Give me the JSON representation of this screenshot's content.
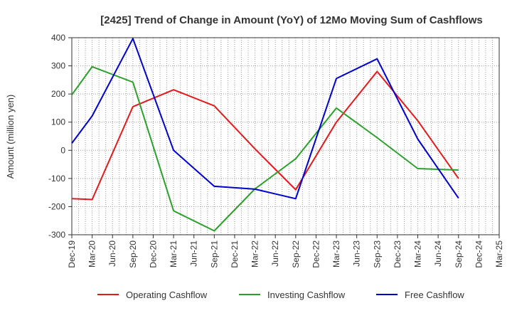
{
  "chart_data": {
    "type": "line",
    "title": "[2425]  Trend of Change in Amount (YoY) of 12Mo Moving Sum of Cashflows",
    "xlabel": "",
    "ylabel": "Amount (million yen)",
    "ylim": [
      -300,
      400
    ],
    "yticks": [
      400,
      300,
      200,
      100,
      0,
      -100,
      -200,
      -300
    ],
    "ytick_labels": [
      "400",
      "300",
      "200",
      "100",
      "0",
      "-100",
      "-200",
      "-300"
    ],
    "categories": [
      "Dec-19",
      "Mar-20",
      "Jun-20",
      "Sep-20",
      "Dec-20",
      "Mar-21",
      "Jun-21",
      "Sep-21",
      "Dec-21",
      "Mar-22",
      "Jun-22",
      "Sep-22",
      "Dec-22",
      "Mar-23",
      "Jun-23",
      "Sep-23",
      "Dec-23",
      "Mar-24",
      "Jun-24",
      "Sep-24",
      "Dec-24",
      "Mar-25"
    ],
    "grid": true,
    "legend_position": "bottom",
    "series": [
      {
        "name": "Operating Cashflow",
        "color": "#e31a1c",
        "points": [
          [
            0,
            -172
          ],
          [
            1,
            -175
          ],
          [
            3,
            155
          ],
          [
            5,
            215
          ],
          [
            7,
            158
          ],
          [
            9,
            5
          ],
          [
            11,
            -140
          ],
          [
            13,
            100
          ],
          [
            15,
            280
          ],
          [
            17,
            105
          ],
          [
            19,
            -100
          ]
        ]
      },
      {
        "name": "Investing Cashflow",
        "color": "#2ca02c",
        "points": [
          [
            0,
            197
          ],
          [
            1,
            297
          ],
          [
            3,
            242
          ],
          [
            5,
            -215
          ],
          [
            7,
            -286
          ],
          [
            9,
            -137
          ],
          [
            11,
            -30
          ],
          [
            13,
            150
          ],
          [
            15,
            45
          ],
          [
            17,
            -65
          ],
          [
            19,
            -70
          ]
        ]
      },
      {
        "name": "Free Cashflow",
        "color": "#0000cc",
        "points": [
          [
            0,
            25
          ],
          [
            1,
            122
          ],
          [
            3,
            397
          ],
          [
            5,
            0
          ],
          [
            7,
            -128
          ],
          [
            9,
            -138
          ],
          [
            11,
            -172
          ],
          [
            13,
            255
          ],
          [
            15,
            325
          ],
          [
            17,
            40
          ],
          [
            19,
            -170
          ]
        ]
      }
    ]
  }
}
